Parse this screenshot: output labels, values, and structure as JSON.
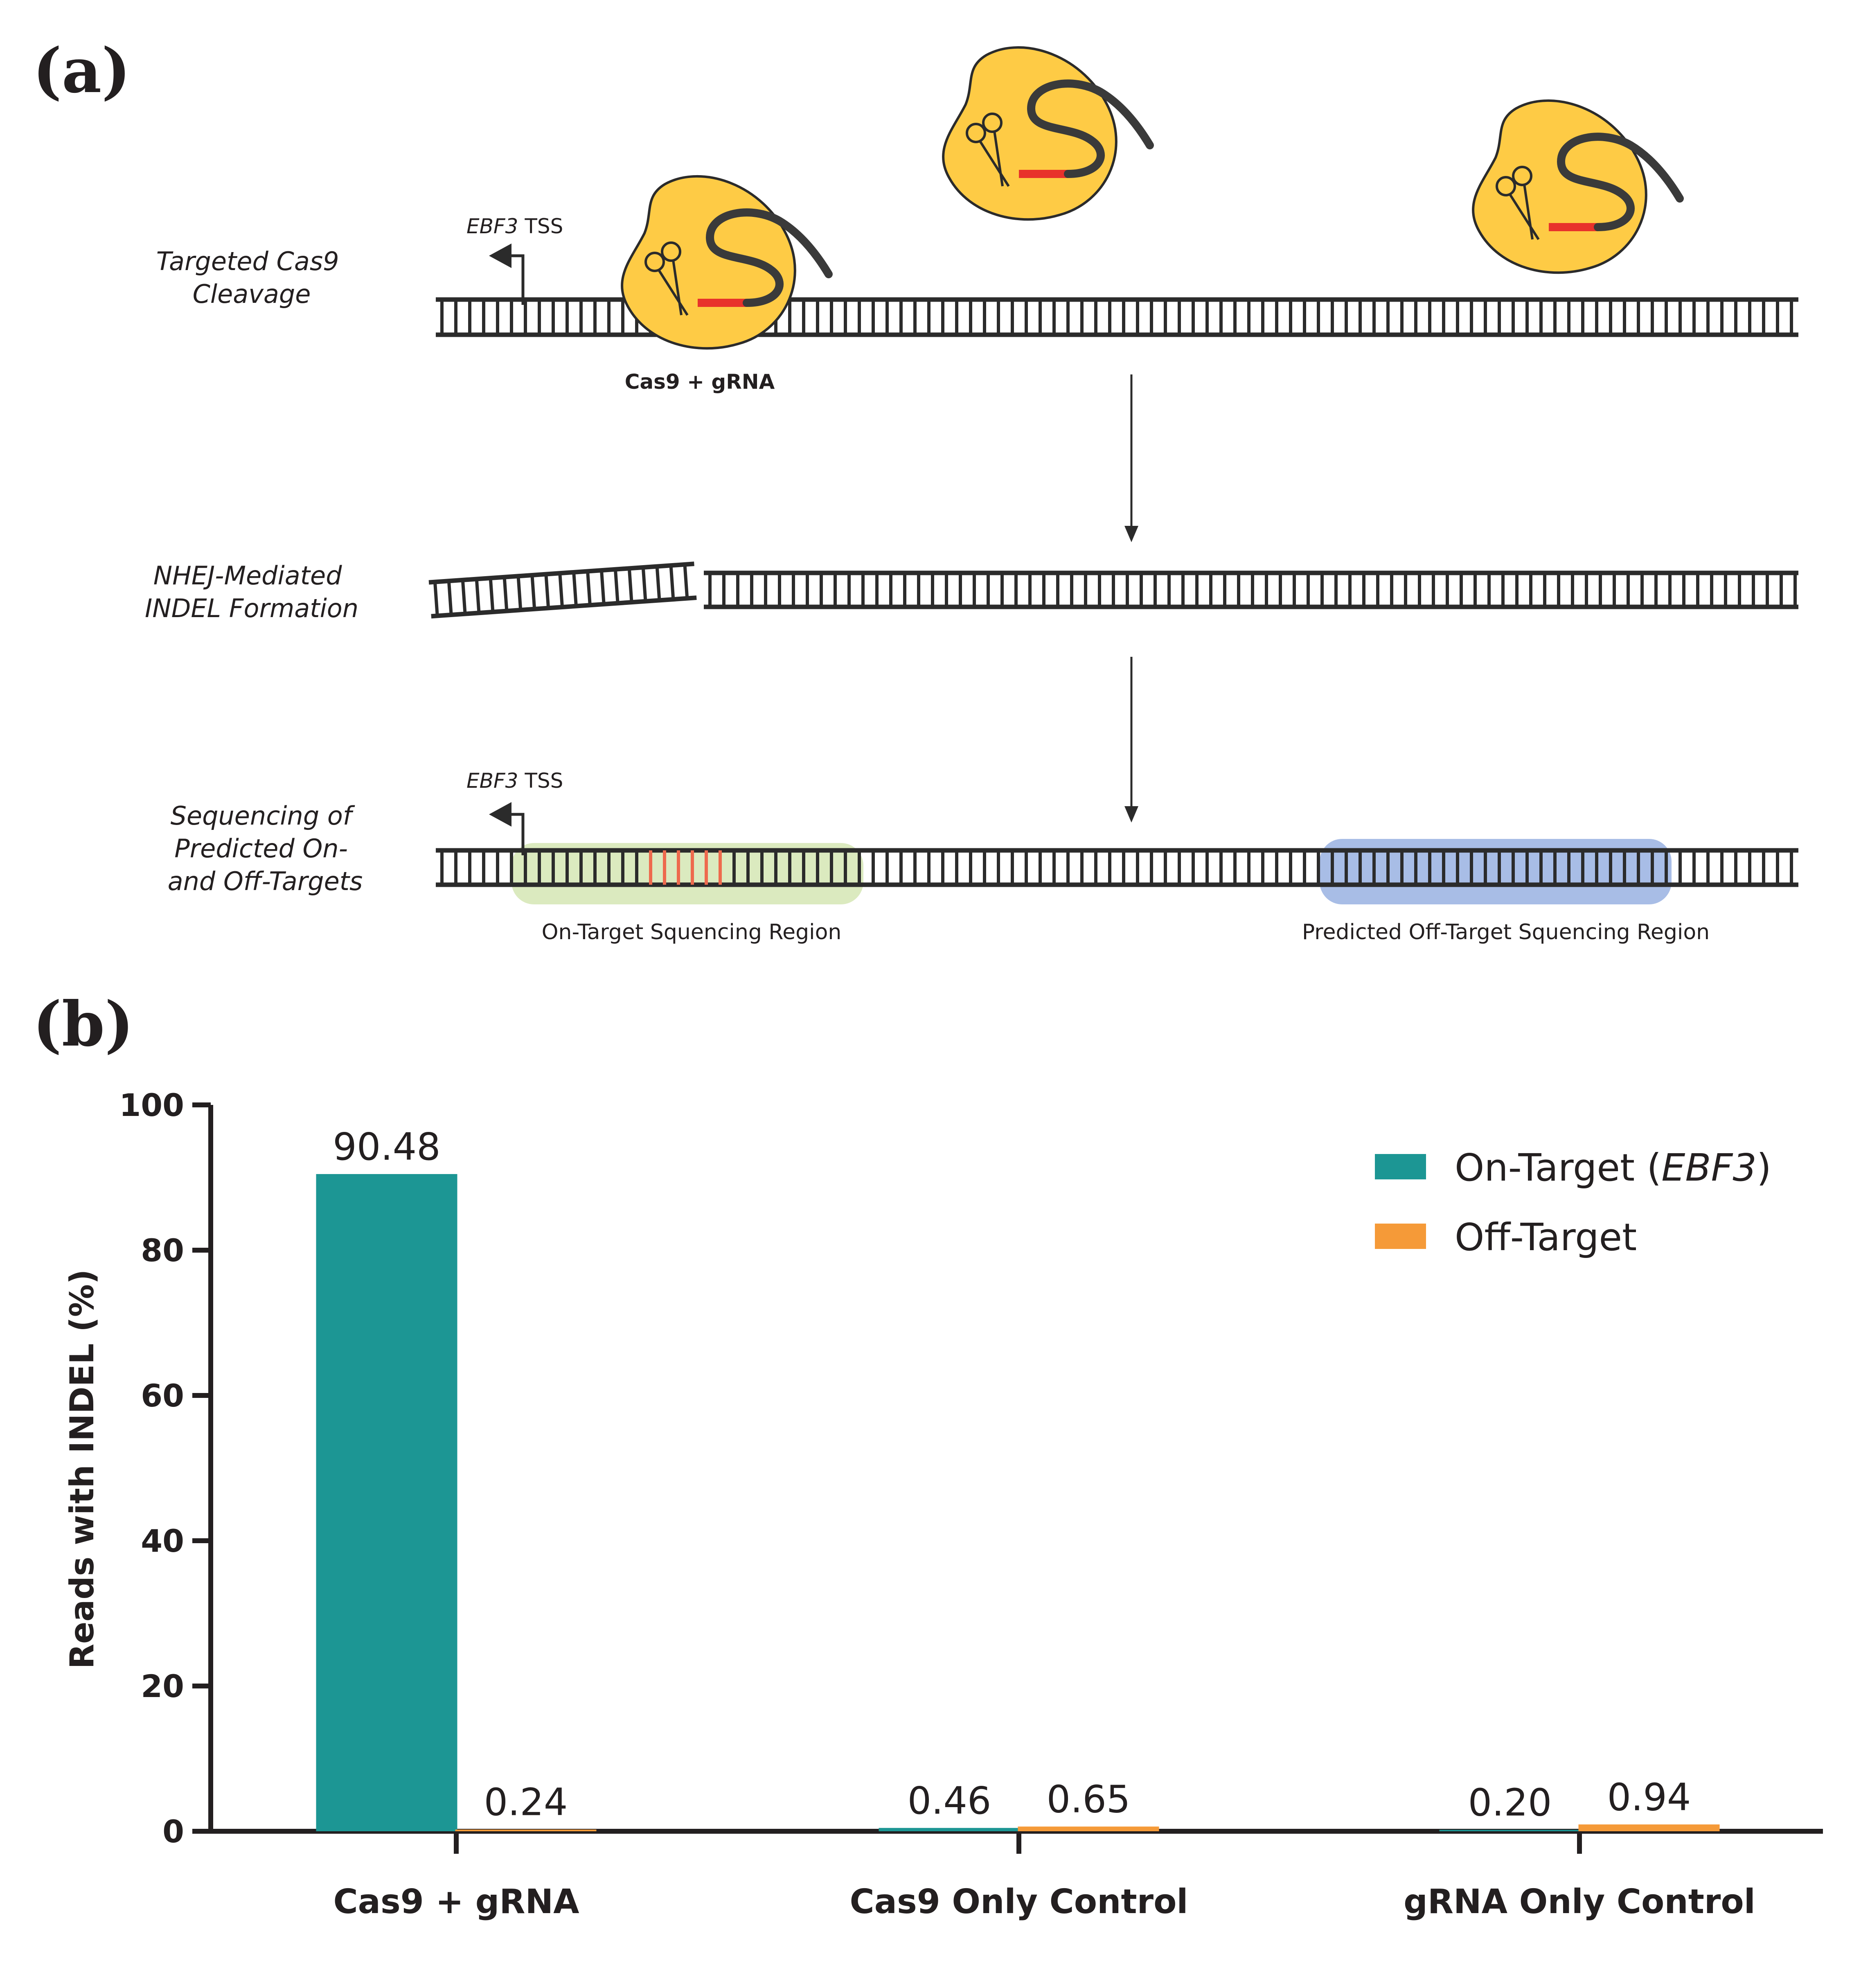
{
  "panel_a": {
    "label": "(a)",
    "steps": {
      "cleavage": [
        "Targeted Cas9",
        "Cleavage"
      ],
      "nhej": [
        "NHEJ-Mediated",
        "INDEL Formation"
      ],
      "sequencing": [
        "Sequencing of",
        "Predicted On-",
        "and Off-Targets"
      ]
    },
    "tss_gene": "EBF3",
    "tss_suffix": " TSS",
    "cas9_label": "Cas9 + gRNA",
    "on_target_region": "On-Target Squencing Region",
    "off_target_region": "Predicted Off-Target Squencing Region",
    "colors": {
      "protein": "#fecb45",
      "dna": "#2b2b2b",
      "guide_red": "#e8322b",
      "on_target_highlight": "#dbeabf",
      "off_target_highlight": "#a8bde6",
      "cut_rungs": "#ee6a4d"
    }
  },
  "panel_b": {
    "label": "(b)",
    "colors": {
      "on": "#1c9694",
      "off": "#f59a38",
      "axis": "#231f20"
    }
  },
  "chart_data": {
    "type": "bar",
    "title": "",
    "xlabel": "",
    "ylabel": "Reads with INDEL (%)",
    "categories": [
      "Cas9 + gRNA",
      "Cas9 Only Control",
      "gRNA Only Control"
    ],
    "series": [
      {
        "name": "On-Target",
        "name_italic": "EBF3",
        "values": [
          90.48,
          0.46,
          0.2
        ],
        "labels": [
          "90.48",
          "0.46",
          "0.20"
        ]
      },
      {
        "name": "Off-Target",
        "values": [
          0.24,
          0.65,
          0.94
        ],
        "labels": [
          "0.24",
          "0.65",
          "0.94"
        ]
      }
    ],
    "ylim": [
      0,
      100
    ],
    "yticks": [
      0,
      20,
      40,
      60,
      80,
      100
    ],
    "legend_position": "top-right",
    "grid": false
  }
}
